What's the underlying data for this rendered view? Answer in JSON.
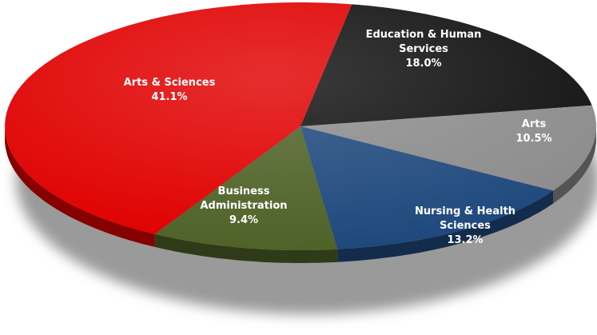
{
  "chart_data": {
    "type": "pie",
    "categories": [
      "Education & Human Services",
      "Arts",
      "Nursing & Health Sciences",
      "Business Administration",
      "Arts & Sciences"
    ],
    "values": [
      18.0,
      10.5,
      13.2,
      9.4,
      41.1
    ],
    "value_labels": [
      "18.0%",
      "10.5%",
      "13.2%",
      "9.4%",
      "41.1%"
    ],
    "colors": [
      "#111111",
      "#8c8c8c",
      "#1f497d",
      "#4f6228",
      "#e00000"
    ]
  }
}
